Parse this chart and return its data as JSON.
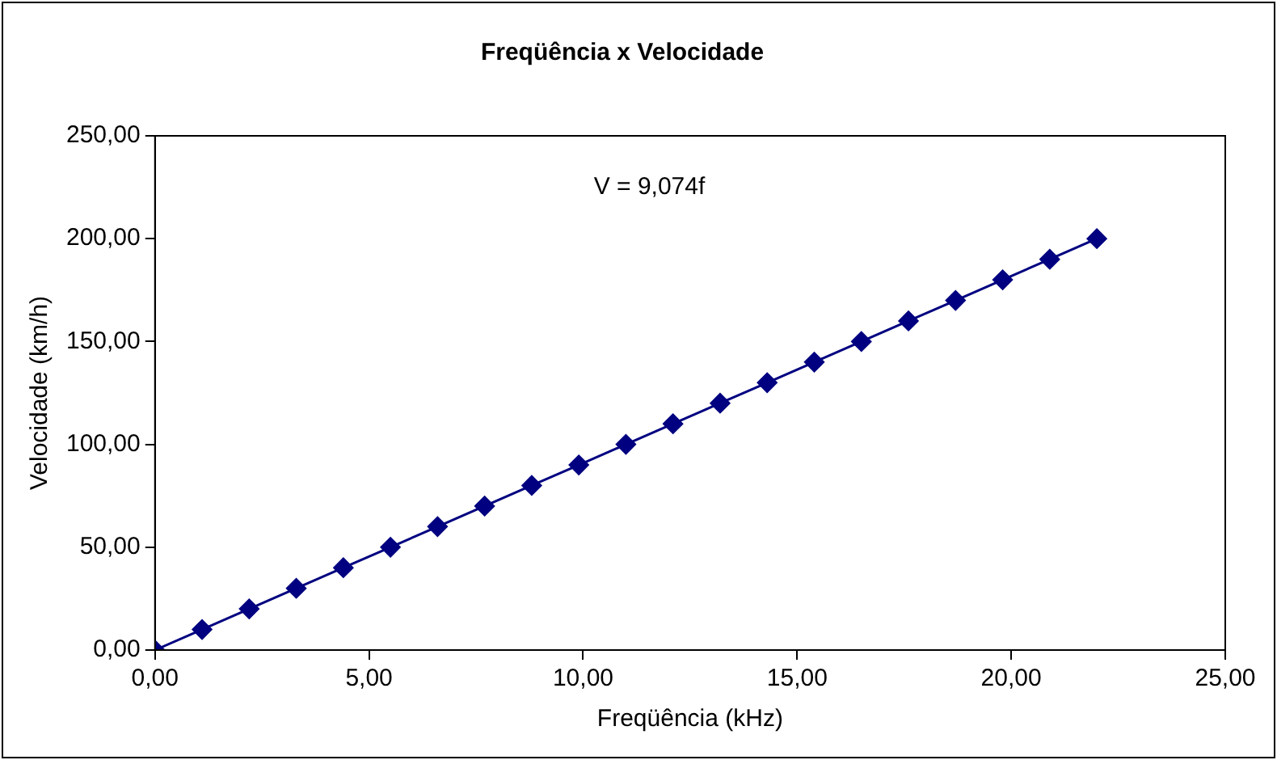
{
  "chart_data": {
    "type": "line",
    "title": "Freqüência x Velocidade",
    "xlabel": "Freqüência (kHz)",
    "ylabel": "Velocidade (km/h)",
    "annotations": [
      "V = 9,074f"
    ],
    "x": [
      0,
      1.1,
      2.2,
      3.3,
      4.4,
      5.5,
      6.6,
      7.7,
      8.8,
      9.9,
      11.0,
      12.1,
      13.2,
      14.3,
      15.4,
      16.5,
      17.6,
      18.7,
      19.8,
      20.9,
      22.0
    ],
    "series": [
      {
        "color": "#000080",
        "values": [
          0,
          10,
          20,
          30,
          40,
          50,
          60,
          70,
          80,
          90,
          100,
          110,
          120,
          130,
          140,
          150,
          160,
          170,
          180,
          190,
          200
        ]
      }
    ],
    "xlim": [
      0,
      25
    ],
    "xticks": [
      {
        "value": 0,
        "label": "0,00"
      },
      {
        "value": 5,
        "label": "5,00"
      },
      {
        "value": 10,
        "label": "10,00"
      },
      {
        "value": 15,
        "label": "15,00"
      },
      {
        "value": 20,
        "label": "20,00"
      },
      {
        "value": 25,
        "label": "25,00"
      }
    ],
    "ylim": [
      0,
      250
    ],
    "yticks": [
      {
        "value": 0,
        "label": "0,00"
      },
      {
        "value": 50,
        "label": "50,00"
      },
      {
        "value": 100,
        "label": "100,00"
      },
      {
        "value": 150,
        "label": "150,00"
      },
      {
        "value": 200,
        "label": "200,00"
      },
      {
        "value": 250,
        "label": "250,00"
      }
    ],
    "grid": false,
    "legend": false,
    "marker": "diamond",
    "line_style": "solid"
  }
}
